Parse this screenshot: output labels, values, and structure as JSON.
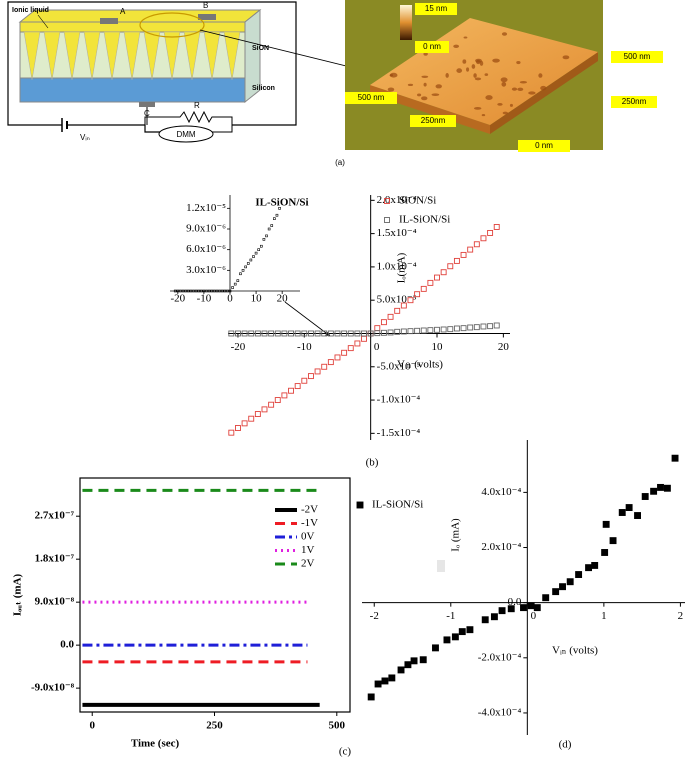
{
  "diagram": {
    "ionic_liquid": "Ionic liquid",
    "electrode_a": "A",
    "electrode_b": "B",
    "layer_top": "SiON",
    "layer_bottom": "Silicon",
    "electrode_c": "C",
    "resistor": "R",
    "meter": "DMM",
    "source": "Vᵢₙ",
    "caption": "(a)"
  },
  "afm": {
    "scale_max": "15 nm",
    "scale_min": "0 nm",
    "edge_right": "500 nm",
    "edge_left": "500 nm",
    "mid_right": "250nm",
    "mid_front": "250nm",
    "base": "0 nm"
  },
  "chart_data": [
    {
      "type": "scatter",
      "caption": "(b)",
      "xlabel": "Vᵢₙ (volts)",
      "ylabel": "Iₒ(mA)",
      "axes": "centered",
      "legend": "upper right",
      "x": [
        -21,
        -20,
        -19,
        -18,
        -17,
        -16,
        -15,
        -14,
        -13,
        -12,
        -11,
        -10,
        -9,
        -8,
        -7,
        -6,
        -5,
        -4,
        -3,
        -2,
        -1,
        0,
        1,
        2,
        3,
        4,
        5,
        6,
        7,
        8,
        9,
        10,
        11,
        12,
        13,
        14,
        15,
        16,
        17,
        18,
        19
      ],
      "xlim": [
        -21.5,
        21
      ],
      "ylim": [
        -0.00016,
        0.000208
      ],
      "xticks": [
        -20,
        -10,
        0,
        10,
        20
      ],
      "yticks": [
        {
          "value": -0.00015,
          "label": "-1.5x10⁻⁴"
        },
        {
          "value": -0.0001,
          "label": "-1.0x10⁻⁴"
        },
        {
          "value": -5e-05,
          "label": "-5.0x10⁻⁵"
        },
        {
          "value": 5e-05,
          "label": "5.0x10⁻⁵"
        },
        {
          "value": 0.0001,
          "label": "1.0x10⁻⁴"
        },
        {
          "value": 0.00015,
          "label": "1.5x10⁻⁴"
        },
        {
          "value": 0.0002,
          "label": "2.0x10⁻⁴"
        }
      ],
      "series": [
        {
          "name": "SiON/Si",
          "color": "#e0403a",
          "marker": "open-square",
          "values": [
            -0.000149,
            -0.000142,
            -0.000135,
            -0.000128,
            -0.000121,
            -0.000114,
            -0.000107,
            -0.0001,
            -9.3e-05,
            -8.6e-05,
            -7.9e-05,
            -7.1e-05,
            -6.4e-05,
            -5.7e-05,
            -5e-05,
            -4.3e-05,
            -3.6e-05,
            -2.9e-05,
            -2.2e-05,
            -1.5e-05,
            -8e-06,
            0,
            8e-06,
            1.7e-05,
            2.5e-05,
            3.4e-05,
            4.2e-05,
            5e-05,
            5.9e-05,
            6.7e-05,
            7.6e-05,
            8.4e-05,
            9.2e-05,
            0.000101,
            0.000109,
            0.000118,
            0.000126,
            0.000134,
            0.000143,
            0.000151,
            0.00016
          ]
        },
        {
          "name": "IL-SiON/Si",
          "color": "#666666",
          "marker": "open-square",
          "values": [
            0,
            0,
            0,
            0,
            0,
            0,
            0,
            0,
            0,
            0,
            0,
            0,
            0,
            0,
            0,
            0,
            0,
            0,
            0,
            0,
            0,
            0,
            5e-07,
            1e-06,
            1.5e-06,
            2.5e-06,
            3e-06,
            3.5e-06,
            4e-06,
            4.5e-06,
            5e-06,
            5.5e-06,
            6e-06,
            6.5e-06,
            7.5e-06,
            8e-06,
            9e-06,
            9.5e-06,
            1.05e-05,
            1.1e-05,
            1.2e-05
          ]
        }
      ],
      "inset": {
        "title": "IL-SiON/Si",
        "xlim": [
          -23,
          23
        ],
        "ylim": [
          0,
          1.35e-05
        ],
        "xticks": [
          -20,
          -10,
          0,
          10,
          20
        ],
        "yticks": [
          {
            "value": 3e-06,
            "label": "3.0x10⁻⁶"
          },
          {
            "value": 6e-06,
            "label": "6.0x10⁻⁶"
          },
          {
            "value": 9e-06,
            "label": "9.0x10⁻⁶"
          },
          {
            "value": 1.2e-05,
            "label": "1.2x10⁻⁵"
          }
        ]
      }
    },
    {
      "type": "line",
      "caption": "(c)",
      "xlabel": "Time (sec)",
      "ylabel": "Iₒᵤₜ (mA)",
      "legend": "upper right",
      "xlim": [
        -25,
        527
      ],
      "ylim": [
        -1.4e-07,
        3.5e-07
      ],
      "xticks": [
        0,
        250,
        500
      ],
      "yticks": [
        {
          "value": -9e-08,
          "label": "-9.0x10⁻⁸"
        },
        {
          "value": 0,
          "label": "0.0"
        },
        {
          "value": 9e-08,
          "label": "9.0x10⁻⁸"
        },
        {
          "value": 1.8e-07,
          "label": "1.8x10⁻⁷"
        },
        {
          "value": 2.7e-07,
          "label": "2.7x10⁻⁷"
        }
      ],
      "series": [
        {
          "name": "-2V",
          "color": "#000000",
          "linestyle": "solid",
          "x": [
            -20,
            465
          ],
          "values": [
            -1.25e-07,
            -1.25e-07
          ]
        },
        {
          "name": "-1V",
          "color": "#ee1c24",
          "linestyle": "dashed",
          "x": [
            -20,
            440
          ],
          "values": [
            -3.5e-08,
            -3.5e-08
          ]
        },
        {
          "name": "0V",
          "color": "#1f1fd8",
          "linestyle": "dashdot",
          "x": [
            -20,
            440
          ],
          "values": [
            0,
            0
          ]
        },
        {
          "name": "1V",
          "color": "#e020e0",
          "linestyle": "dotted",
          "x": [
            -20,
            440
          ],
          "values": [
            9e-08,
            9e-08
          ]
        },
        {
          "name": "2V",
          "color": "#1a8a1a",
          "linestyle": "dashed",
          "x": [
            -20,
            465
          ],
          "values": [
            3.24e-07,
            3.24e-07
          ]
        }
      ]
    },
    {
      "type": "scatter",
      "caption": "(d)",
      "xlabel": "Vᵢₙ (volts)",
      "ylabel": "Iₒ (mA)",
      "axes": "centered",
      "legend": "upper left",
      "x": [
        -2.04,
        -1.95,
        -1.86,
        -1.77,
        -1.65,
        -1.56,
        -1.48,
        -1.36,
        -1.2,
        -1.05,
        -0.94,
        -0.85,
        -0.75,
        -0.55,
        -0.43,
        -0.33,
        -0.21,
        -0.05,
        0.05,
        0.13,
        0.24,
        0.37,
        0.46,
        0.56,
        0.67,
        0.8,
        0.88,
        1.01,
        1.03,
        1.12,
        1.24,
        1.33,
        1.44,
        1.54,
        1.65,
        1.74,
        1.83,
        1.93
      ],
      "xlim": [
        -2.16,
        2.06
      ],
      "ylim": [
        -0.00048,
        0.00059
      ],
      "xticks": [
        -2,
        -1,
        0,
        1,
        2
      ],
      "yticks": [
        {
          "value": -0.0004,
          "label": "-4.0x10⁻⁴"
        },
        {
          "value": -0.0002,
          "label": "-2.0x10⁻⁴"
        },
        {
          "value": 0,
          "label": "0.0"
        },
        {
          "value": 0.0002,
          "label": "2.0x10⁻⁴"
        },
        {
          "value": 0.0004,
          "label": "4.0x10⁻⁴"
        }
      ],
      "series": [
        {
          "name": "IL-SiON/Si",
          "color": "#000000",
          "marker": "filled-square",
          "values": [
            -0.000342,
            -0.000295,
            -0.000284,
            -0.000273,
            -0.000244,
            -0.000225,
            -0.000211,
            -0.000207,
            -0.000164,
            -0.000135,
            -0.000124,
            -0.000105,
            -9.8e-05,
            -6.2e-05,
            -5.1e-05,
            -2.9e-05,
            -2.2e-05,
            -1.8e-05,
            -1.1e-05,
            -1.8e-05,
            1.8e-05,
            4e-05,
            5.8e-05,
            7.6e-05,
            0.000102,
            0.000127,
            0.000135,
            0.000182,
            0.000284,
            0.000225,
            0.000327,
            0.000345,
            0.000316,
            0.000385,
            0.000404,
            0.000418,
            0.000415,
            0.000524
          ]
        }
      ]
    }
  ]
}
